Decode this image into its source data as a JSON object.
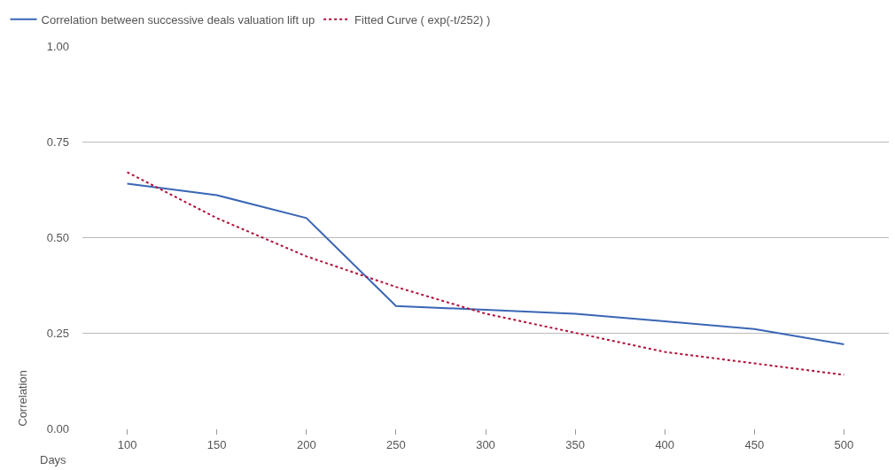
{
  "chart_data": {
    "type": "line",
    "xlabel": "Days",
    "ylabel": "Correlation",
    "categories": [
      "100",
      "150",
      "200",
      "250",
      "300",
      "350",
      "400",
      "450",
      "500"
    ],
    "series": [
      {
        "name": "Correlation between successive deals valuation lift up",
        "color": "#3a66b5",
        "line_style": "solid",
        "values": [
          0.64,
          0.61,
          0.55,
          0.32,
          0.31,
          0.3,
          0.28,
          0.26,
          0.22
        ]
      },
      {
        "name": "Fitted Curve ( exp(-t/252) )",
        "color": "#b0103a",
        "line_style": "dotted",
        "values": [
          0.67,
          0.55,
          0.45,
          0.37,
          0.3,
          0.25,
          0.2,
          0.17,
          0.14
        ]
      }
    ],
    "ylim": [
      0,
      1
    ],
    "yticks": [
      {
        "value": 0,
        "label": "0.00"
      },
      {
        "value": 0.25,
        "label": "0.25"
      },
      {
        "value": 0.5,
        "label": "0.50"
      },
      {
        "value": 0.75,
        "label": "0.75"
      },
      {
        "value": 1,
        "label": "1.00"
      }
    ],
    "grid": "y",
    "legend": "top left",
    "marker": "none"
  }
}
